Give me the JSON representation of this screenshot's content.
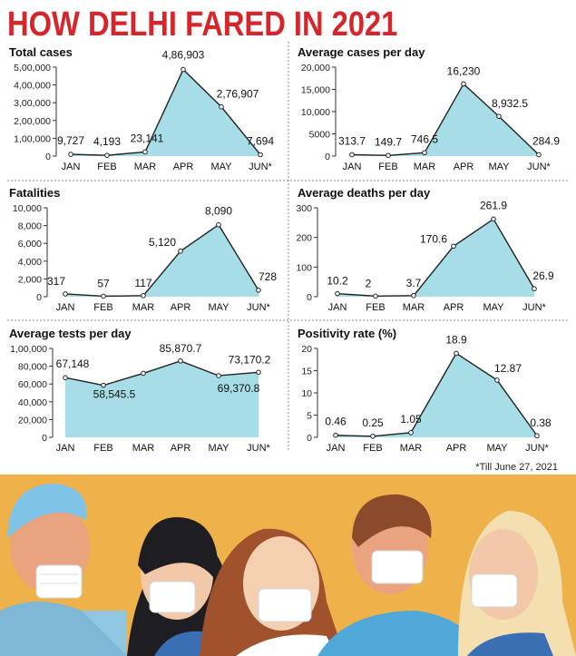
{
  "header": {
    "title": "HOW DELHI FARED IN 2021"
  },
  "footnote": "*Till June 27, 2021",
  "colors": {
    "title": "#d7262b",
    "area": "#a6dde6",
    "line": "#222222",
    "background_art": "#efb24a"
  },
  "chart_data": [
    {
      "type": "area",
      "title": "Total cases",
      "categories": [
        "JAN",
        "FEB",
        "MAR",
        "APR",
        "MAY",
        "JUN*"
      ],
      "values": [
        9727,
        4193,
        23141,
        486903,
        276907,
        7694
      ],
      "data_labels": [
        "9,727",
        "4,193",
        "23,141",
        "4,86,903",
        "2,76,907",
        "7,694"
      ],
      "yticks": [
        "0",
        "1,00,000",
        "2,00,000",
        "3,00,000",
        "4,00,000",
        "5,00,000"
      ],
      "ylim": [
        0,
        500000
      ],
      "xlabel": "",
      "ylabel": ""
    },
    {
      "type": "area",
      "title": "Average cases per day",
      "categories": [
        "JAN",
        "FEB",
        "MAR",
        "APR",
        "MAY",
        "JUN*"
      ],
      "values": [
        313.7,
        149.7,
        746.5,
        16230,
        8932.5,
        284.9
      ],
      "data_labels": [
        "313.7",
        "149.7",
        "746.5",
        "16,230",
        "8,932.5",
        "284.9"
      ],
      "yticks": [
        "0",
        "5000",
        "10,000",
        "15,000",
        "20,000"
      ],
      "ylim": [
        0,
        20000
      ],
      "xlabel": "",
      "ylabel": ""
    },
    {
      "type": "area",
      "title": "Fatalities",
      "categories": [
        "JAN",
        "FEB",
        "MAR",
        "APR",
        "MAY",
        "JUN*"
      ],
      "values": [
        317,
        57,
        117,
        5120,
        8090,
        728
      ],
      "data_labels": [
        "317",
        "57",
        "117",
        "5,120",
        "8,090",
        "728"
      ],
      "yticks": [
        "0",
        "2,000",
        "4,000",
        "6,000",
        "8,000",
        "10,000"
      ],
      "ylim": [
        0,
        10000
      ],
      "xlabel": "",
      "ylabel": ""
    },
    {
      "type": "area",
      "title": "Average deaths per day",
      "categories": [
        "JAN",
        "FEB",
        "MAR",
        "APR",
        "MAY",
        "JUN*"
      ],
      "values": [
        10.2,
        2,
        3.7,
        170.6,
        261.9,
        26.9
      ],
      "data_labels": [
        "10.2",
        "2",
        "3.7",
        "170.6",
        "261.9",
        "26.9"
      ],
      "yticks": [
        "0",
        "100",
        "200",
        "300"
      ],
      "ylim": [
        0,
        300
      ],
      "xlabel": "",
      "ylabel": ""
    },
    {
      "type": "area",
      "title": "Average tests per day",
      "categories": [
        "JAN",
        "FEB",
        "MAR",
        "APR",
        "MAY",
        "JUN*"
      ],
      "values": [
        67148,
        58545.5,
        72000,
        85870.7,
        69370.8,
        73170.2
      ],
      "data_labels": [
        "67,148",
        "58,545.5",
        "",
        "85,870.7",
        "69,370.8",
        "73,170.2"
      ],
      "yticks": [
        "0",
        "20,000",
        "40,000",
        "60,000",
        "80,000",
        "1,00,000"
      ],
      "ylim": [
        0,
        100000
      ],
      "xlabel": "",
      "ylabel": ""
    },
    {
      "type": "area",
      "title": "Positivity rate (%)",
      "categories": [
        "JAN",
        "FEB",
        "MAR",
        "APR",
        "MAY",
        "JUN*"
      ],
      "values": [
        0.46,
        0.25,
        1.05,
        18.9,
        12.87,
        0.38
      ],
      "data_labels": [
        "0.46",
        "0.25",
        "1.05",
        "18.9",
        "12.87",
        "0.38"
      ],
      "yticks": [
        "0",
        "5",
        "10",
        "15",
        "20"
      ],
      "ylim": [
        0,
        20
      ],
      "xlabel": "",
      "ylabel": ""
    }
  ]
}
